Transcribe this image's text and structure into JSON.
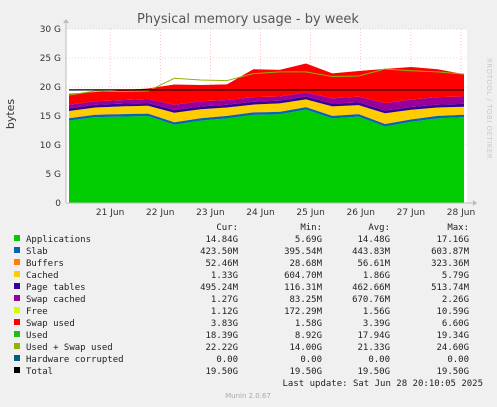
{
  "chart_data": {
    "type": "area",
    "title": "Physical memory usage - by week",
    "ylabel": "bytes",
    "ylim": [
      0,
      30
    ],
    "yticks": [
      "0",
      "5 G",
      "10 G",
      "15 G",
      "20 G",
      "25 G",
      "30 G"
    ],
    "x_ticks": [
      "21 Jun",
      "22 Jun",
      "23 Jun",
      "24 Jun",
      "25 Jun",
      "26 Jun",
      "27 Jun",
      "28 Jun"
    ],
    "x": [
      "Jun 21 00:00",
      "Jun 21 12:00",
      "Jun 22 00:00",
      "Jun 22 12:00",
      "Jun 23 00:00",
      "Jun 23 12:00",
      "Jun 24 00:00",
      "Jun 24 12:00",
      "Jun 25 00:00",
      "Jun 25 12:00",
      "Jun 26 00:00",
      "Jun 26 12:00",
      "Jun 27 00:00",
      "Jun 27 12:00",
      "Jun 28 00:00",
      "Jun 28 12:00"
    ],
    "grid": true,
    "legend_position": "bottom",
    "series": [
      {
        "name": "Applications",
        "color": "#00cc00",
        "values": [
          14.2,
          14.8,
          14.9,
          15.0,
          13.5,
          14.2,
          14.6,
          15.2,
          15.3,
          16.1,
          14.6,
          14.9,
          13.2,
          14.0,
          14.6,
          14.8
        ]
      },
      {
        "name": "Slab",
        "color": "#0066b3",
        "values": [
          0.42,
          0.42,
          0.42,
          0.42,
          0.42,
          0.42,
          0.42,
          0.42,
          0.42,
          0.42,
          0.42,
          0.42,
          0.42,
          0.42,
          0.42,
          0.42
        ]
      },
      {
        "name": "Buffers",
        "color": "#ff8000",
        "values": [
          0.05,
          0.05,
          0.05,
          0.05,
          0.05,
          0.05,
          0.05,
          0.05,
          0.05,
          0.05,
          0.05,
          0.05,
          0.05,
          0.05,
          0.05,
          0.05
        ]
      },
      {
        "name": "Cached",
        "color": "#ffcc00",
        "values": [
          1.2,
          1.2,
          1.3,
          1.3,
          1.6,
          1.5,
          1.4,
          1.3,
          1.4,
          1.3,
          1.6,
          1.5,
          1.8,
          1.6,
          1.4,
          1.33
        ]
      },
      {
        "name": "Page tables",
        "color": "#330099",
        "values": [
          0.47,
          0.47,
          0.47,
          0.48,
          0.46,
          0.47,
          0.48,
          0.49,
          0.49,
          0.49,
          0.47,
          0.48,
          0.46,
          0.48,
          0.49,
          0.5
        ]
      },
      {
        "name": "Swap cached",
        "color": "#990099",
        "values": [
          0.6,
          0.6,
          0.6,
          0.7,
          0.9,
          0.9,
          0.8,
          0.8,
          0.7,
          0.7,
          0.9,
          1.0,
          1.3,
          1.3,
          1.3,
          1.27
        ]
      },
      {
        "name": "Swap used",
        "color": "#ff0000",
        "values": [
          1.9,
          1.6,
          1.7,
          1.8,
          3.5,
          2.8,
          2.7,
          4.8,
          4.6,
          5.0,
          4.3,
          4.4,
          5.9,
          5.6,
          4.8,
          3.83
        ]
      },
      {
        "name": "Used + Swap used",
        "color": "#8fb300",
        "values": [
          18.6,
          19.3,
          19.2,
          19.3,
          21.5,
          21.2,
          21.1,
          22.3,
          22.6,
          22.6,
          21.8,
          21.9,
          23.1,
          22.8,
          22.6,
          22.22
        ]
      },
      {
        "name": "Total",
        "color": "#000000",
        "values": [
          19.5,
          19.5,
          19.5,
          19.5,
          19.5,
          19.5,
          19.5,
          19.5,
          19.5,
          19.5,
          19.5,
          19.5,
          19.5,
          19.5,
          19.5,
          19.5
        ]
      }
    ]
  },
  "side_label": "RRDTOOL / TOBI OETIKER",
  "legend": {
    "headers": {
      "cur": "Cur:",
      "min": "Min:",
      "avg": "Avg:",
      "max": "Max:"
    },
    "rows": [
      {
        "name": "Applications",
        "color": "#00cc00",
        "cur": "14.84G",
        "min": "5.69G",
        "avg": "14.48G",
        "max": "17.16G"
      },
      {
        "name": "Slab",
        "color": "#0066b3",
        "cur": "423.50M",
        "min": "395.54M",
        "avg": "443.83M",
        "max": "603.87M"
      },
      {
        "name": "Buffers",
        "color": "#ff8000",
        "cur": "52.46M",
        "min": "28.68M",
        "avg": "56.61M",
        "max": "323.36M"
      },
      {
        "name": "Cached",
        "color": "#ffcc00",
        "cur": "1.33G",
        "min": "604.70M",
        "avg": "1.86G",
        "max": "5.79G"
      },
      {
        "name": "Page tables",
        "color": "#330099",
        "cur": "495.24M",
        "min": "116.31M",
        "avg": "462.66M",
        "max": "513.74M"
      },
      {
        "name": "Swap cached",
        "color": "#990099",
        "cur": "1.27G",
        "min": "83.25M",
        "avg": "670.76M",
        "max": "2.26G"
      },
      {
        "name": "Free",
        "color": "#ccff00",
        "cur": "1.12G",
        "min": "172.29M",
        "avg": "1.56G",
        "max": "10.59G"
      },
      {
        "name": "Swap used",
        "color": "#ff0000",
        "cur": "3.83G",
        "min": "1.58G",
        "avg": "3.39G",
        "max": "6.60G"
      },
      {
        "name": "Used",
        "color": "#24bc14",
        "cur": "18.39G",
        "min": "8.92G",
        "avg": "17.94G",
        "max": "19.34G"
      },
      {
        "name": "Used + Swap used",
        "color": "#8fb300",
        "cur": "22.22G",
        "min": "14.00G",
        "avg": "21.33G",
        "max": "24.60G"
      },
      {
        "name": "Hardware corrupted",
        "color": "#006080",
        "cur": "0.00",
        "min": "0.00",
        "avg": "0.00",
        "max": "0.00"
      },
      {
        "name": "Total",
        "color": "#000000",
        "cur": "19.50G",
        "min": "19.50G",
        "avg": "19.50G",
        "max": "19.50G"
      }
    ]
  },
  "last_update": "Last update: Sat Jun 28 20:10:05 2025",
  "footer": "Munin 2.0.67"
}
